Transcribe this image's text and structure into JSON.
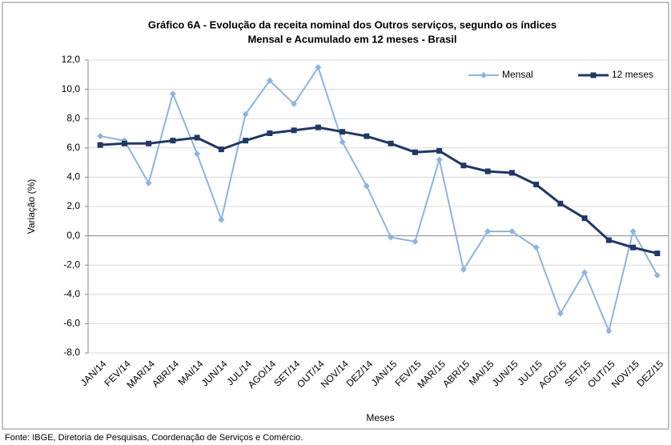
{
  "chart_data": {
    "type": "line",
    "title": [
      "Gráfico 6A - Evolução da receita nominal dos Outros serviços, segundo os índices",
      "Mensal e Acumulado em 12 meses - Brasil"
    ],
    "y_label": "Variação (%)",
    "x_label": "Meses",
    "source": "Fonte: IBGE, Diretoria de Pesquisas, Coordenação de Serviços e Comércio.",
    "categories": [
      "JAN/14",
      "FEV/14",
      "MAR/14",
      "ABR/14",
      "MAI/14",
      "JUN/14",
      "JUL/14",
      "AGO/14",
      "SET/14",
      "OUT/14",
      "NOV/14",
      "DEZ/14",
      "JAN/15",
      "FEV/15",
      "MAR/15",
      "ABR/15",
      "MAI/15",
      "JUN/15",
      "JUL/15",
      "AGO/15",
      "SET/15",
      "OUT/15",
      "NOV/15",
      "DEZ/15"
    ],
    "series": [
      {
        "name": "Mensal",
        "color": "#8db4e2",
        "marker": "diamond",
        "values": [
          6.8,
          6.5,
          3.6,
          9.7,
          5.6,
          1.1,
          8.3,
          10.6,
          9.0,
          11.5,
          6.4,
          3.4,
          -0.1,
          -0.4,
          5.2,
          -2.3,
          0.3,
          0.3,
          -0.8,
          -5.3,
          -2.5,
          -6.5,
          0.3,
          -2.7
        ]
      },
      {
        "name": "12 meses",
        "color": "#1f3864",
        "marker": "square",
        "values": [
          6.2,
          6.3,
          6.3,
          6.5,
          6.7,
          5.9,
          6.5,
          7.0,
          7.2,
          7.4,
          7.1,
          6.8,
          6.3,
          5.7,
          5.8,
          4.8,
          4.4,
          4.3,
          3.5,
          2.2,
          1.2,
          -0.3,
          -0.8,
          -1.2
        ]
      }
    ],
    "ylim": [
      -8,
      12
    ],
    "yticks": [
      {
        "value": -8,
        "label": "-8,0"
      },
      {
        "value": -6,
        "label": "-6,0"
      },
      {
        "value": -4,
        "label": "-4,0"
      },
      {
        "value": -2,
        "label": "-2,0"
      },
      {
        "value": 0,
        "label": "0,0"
      },
      {
        "value": 2,
        "label": "2,0"
      },
      {
        "value": 4,
        "label": "4,0"
      },
      {
        "value": 6,
        "label": "6,0"
      },
      {
        "value": 8,
        "label": "8,0"
      },
      {
        "value": 10,
        "label": "10,0"
      },
      {
        "value": 12,
        "label": "12,0"
      }
    ],
    "grid": true,
    "legend": "top-right"
  }
}
